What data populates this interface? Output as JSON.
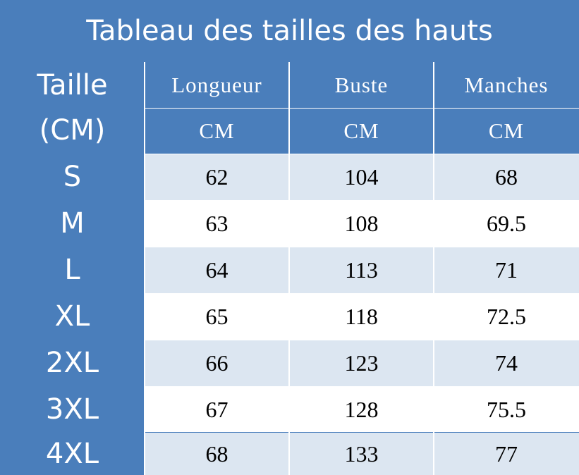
{
  "title": "Tableau des tailles des hauts",
  "size_header": [
    "Taille",
    "(CM)"
  ],
  "columns": [
    {
      "label": "Longueur",
      "unit": "CM"
    },
    {
      "label": "Buste",
      "unit": "CM"
    },
    {
      "label": "Manches",
      "unit": "CM"
    }
  ],
  "rows": [
    {
      "size": "S",
      "values": [
        "62",
        "104",
        "68"
      ]
    },
    {
      "size": "M",
      "values": [
        "63",
        "108",
        "69.5"
      ]
    },
    {
      "size": "L",
      "values": [
        "64",
        "113",
        "71"
      ]
    },
    {
      "size": "XL",
      "values": [
        "65",
        "118",
        "72.5"
      ]
    },
    {
      "size": "2XL",
      "values": [
        "66",
        "123",
        "74"
      ]
    },
    {
      "size": "3XL",
      "values": [
        "67",
        "128",
        "75.5"
      ]
    },
    {
      "size": "4XL",
      "values": [
        "68",
        "133",
        "77"
      ]
    }
  ],
  "colors": {
    "header_blue": "#4a7ebb",
    "row_shade": "#dce6f1"
  }
}
